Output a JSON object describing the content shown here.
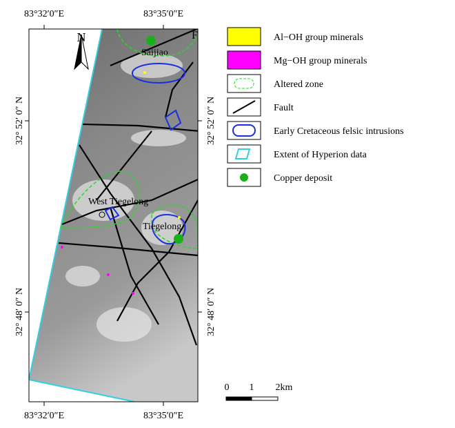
{
  "frame": {
    "top_labels": [
      "83°32′0″E",
      "83°35′0″E"
    ],
    "bottom_labels": [
      "83°32′0″E",
      "83°35′0″E"
    ],
    "left_labels": [
      "32° 52′ 0″ N",
      "32° 48′ 0″ N"
    ],
    "right_labels": [
      "32° 52′ 0″ N",
      "32° 48′ 0″ N"
    ]
  },
  "map": {
    "north": "N",
    "corner_label": "F",
    "places": [
      "Saijiao",
      "West Tiegelong",
      "Tiegelong"
    ]
  },
  "legend": [
    "Al−OH group minerals",
    "Mg−OH group minerals",
    "Altered zone",
    "Fault",
    "Early Cretaceous felsic intrusions",
    "Extent of Hyperion data",
    "Copper deposit"
  ],
  "scale": [
    "0",
    "1",
    "2km"
  ]
}
